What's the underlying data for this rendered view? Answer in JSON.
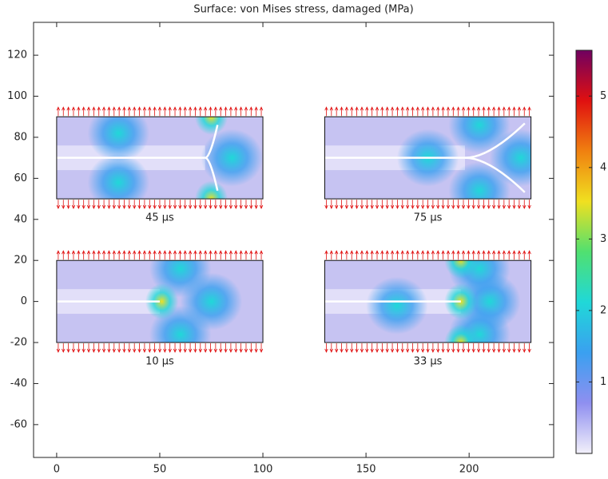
{
  "chart_data": {
    "type": "surface",
    "title": "Surface: von Mises stress, damaged (MPa)",
    "xlim": [
      -11.2,
      241
    ],
    "ylim": [
      -76,
      136
    ],
    "xticks": [
      0,
      50,
      100,
      150,
      200
    ],
    "yticks": [
      -60,
      -40,
      -20,
      0,
      20,
      40,
      60,
      80,
      100,
      120
    ],
    "panels": [
      {
        "label": "45 µs",
        "xlim": [
          0,
          100
        ],
        "ylim": [
          50,
          90
        ]
      },
      {
        "label": "75 µs",
        "xlim": [
          130,
          230
        ],
        "ylim": [
          50,
          90
        ]
      },
      {
        "label": "10 µs",
        "xlim": [
          0,
          100
        ],
        "ylim": [
          -20,
          20
        ]
      },
      {
        "label": "33 µs",
        "xlim": [
          130,
          230
        ],
        "ylim": [
          -20,
          20
        ]
      }
    ],
    "colorbar": {
      "lim": [
        0,
        5.64
      ],
      "ticks": [
        1,
        2,
        3,
        4,
        5
      ],
      "colormap": [
        "#f2f0fa",
        "#8f8ff0",
        "#3aa0f0",
        "#20d8d8",
        "#50e070",
        "#f0e020",
        "#f08010",
        "#e01010",
        "#700060"
      ]
    },
    "load_color": "#e01010"
  }
}
